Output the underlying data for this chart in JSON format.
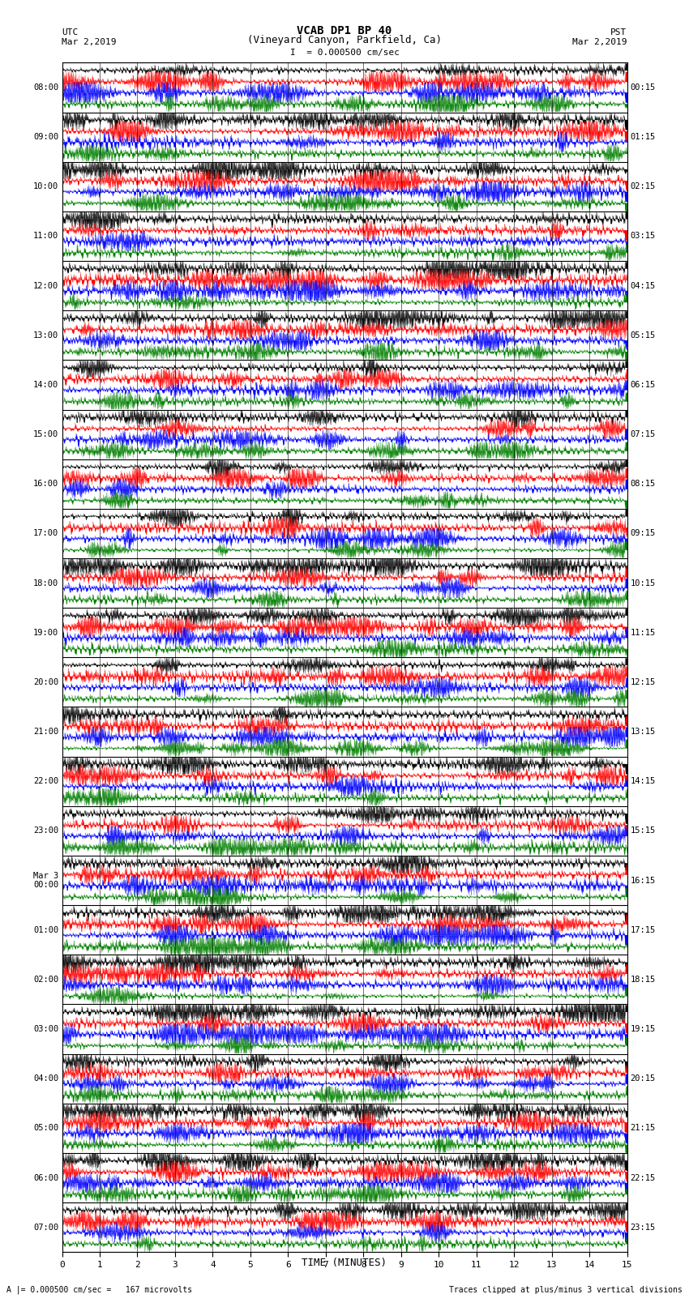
{
  "title_line1": "VCAB DP1 BP 40",
  "title_line2": "(Vineyard Canyon, Parkfield, Ca)",
  "title_line3": "I  = 0.000500 cm/sec",
  "left_label_top": "UTC",
  "left_label_date": "Mar 2,2019",
  "right_label_top": "PST",
  "right_label_date": "Mar 2,2019",
  "bottom_label": "TIME (MINUTES)",
  "footer_left": "A |= 0.000500 cm/sec =   167 microvolts",
  "footer_right": "Traces clipped at plus/minus 3 vertical divisions",
  "xlabel_ticks": [
    0,
    1,
    2,
    3,
    4,
    5,
    6,
    7,
    8,
    9,
    10,
    11,
    12,
    13,
    14,
    15
  ],
  "utc_times": [
    "08:00",
    "09:00",
    "10:00",
    "11:00",
    "12:00",
    "13:00",
    "14:00",
    "15:00",
    "16:00",
    "17:00",
    "18:00",
    "19:00",
    "20:00",
    "21:00",
    "22:00",
    "23:00",
    "Mar 3\n00:00",
    "01:00",
    "02:00",
    "03:00",
    "04:00",
    "05:00",
    "06:00",
    "07:00"
  ],
  "pst_times": [
    "00:15",
    "01:15",
    "02:15",
    "03:15",
    "04:15",
    "05:15",
    "06:15",
    "07:15",
    "08:15",
    "09:15",
    "10:15",
    "11:15",
    "12:15",
    "13:15",
    "14:15",
    "15:15",
    "16:15",
    "17:15",
    "18:15",
    "19:15",
    "20:15",
    "21:15",
    "22:15",
    "23:15"
  ],
  "n_rows": 24,
  "n_cols": 15,
  "colors": [
    "black",
    "red",
    "blue",
    "green"
  ],
  "bg_color": "white"
}
